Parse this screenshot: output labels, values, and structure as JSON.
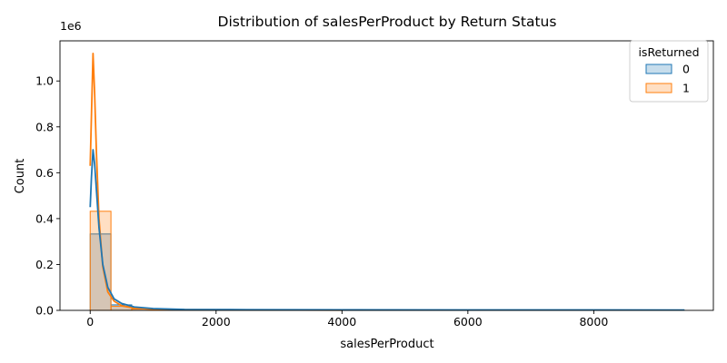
{
  "chart_data": {
    "type": "histogram",
    "title": "Distribution of salesPerProduct by Return Status",
    "xlabel": "salesPerProduct",
    "ylabel": "Count",
    "y_offset_label": "1e6",
    "xlim": [
      -480,
      9900
    ],
    "ylim": [
      0,
      1.175
    ],
    "x_ticks": [
      0,
      2000,
      4000,
      6000,
      8000
    ],
    "x_tick_labels": [
      "0",
      "2000",
      "4000",
      "6000",
      "8000"
    ],
    "y_ticks": [
      0,
      0.2,
      0.4,
      0.6,
      0.8,
      1.0
    ],
    "y_tick_labels": [
      "0.0",
      "0.2",
      "0.4",
      "0.6",
      "0.8",
      "1.0"
    ],
    "grid": false,
    "legend": {
      "title": "isReturned",
      "placement": "top-right"
    },
    "series": [
      {
        "name": "0",
        "color": "#1f77b4",
        "bins": [
          {
            "x0": 0,
            "x1": 330,
            "y": 0.333
          },
          {
            "x0": 330,
            "x1": 660,
            "y": 0.024
          },
          {
            "x0": 660,
            "x1": 990,
            "y": 0.007
          },
          {
            "x0": 990,
            "x1": 1320,
            "y": 0.004
          },
          {
            "x0": 1320,
            "x1": 1650,
            "y": 0.003
          },
          {
            "x0": 1650,
            "x1": 1980,
            "y": 0.002
          },
          {
            "x0": 1980,
            "x1": 2310,
            "y": 0.002
          },
          {
            "x0": 2310,
            "x1": 2640,
            "y": 0.001
          },
          {
            "x0": 2640,
            "x1": 3500,
            "y": 0.001
          },
          {
            "x0": 3500,
            "x1": 9440,
            "y": 0.0005
          }
        ],
        "kde": [
          [
            0,
            0.45
          ],
          [
            20,
            0.58
          ],
          [
            45,
            0.7
          ],
          [
            70,
            0.64
          ],
          [
            100,
            0.52
          ],
          [
            140,
            0.36
          ],
          [
            200,
            0.2
          ],
          [
            280,
            0.1
          ],
          [
            380,
            0.05
          ],
          [
            500,
            0.03
          ],
          [
            700,
            0.015
          ],
          [
            1000,
            0.008
          ],
          [
            1500,
            0.004
          ],
          [
            2500,
            0.003
          ],
          [
            4000,
            0.0025
          ],
          [
            6000,
            0.002
          ],
          [
            8000,
            0.0018
          ],
          [
            9440,
            0.0015
          ]
        ]
      },
      {
        "name": "1",
        "color": "#ff7f0e",
        "bins": [
          {
            "x0": 0,
            "x1": 330,
            "y": 0.432
          },
          {
            "x0": 330,
            "x1": 660,
            "y": 0.018
          },
          {
            "x0": 660,
            "x1": 990,
            "y": 0.006
          },
          {
            "x0": 990,
            "x1": 1320,
            "y": 0.003
          },
          {
            "x0": 1320,
            "x1": 1650,
            "y": 0.002
          },
          {
            "x0": 1650,
            "x1": 1980,
            "y": 0.001
          },
          {
            "x0": 1980,
            "x1": 2640,
            "y": 0.001
          },
          {
            "x0": 2640,
            "x1": 4000,
            "y": 0.0005
          }
        ],
        "kde": [
          [
            0,
            0.63
          ],
          [
            20,
            0.85
          ],
          [
            45,
            1.12
          ],
          [
            70,
            0.95
          ],
          [
            100,
            0.68
          ],
          [
            140,
            0.4
          ],
          [
            200,
            0.19
          ],
          [
            280,
            0.08
          ],
          [
            380,
            0.04
          ],
          [
            500,
            0.02
          ],
          [
            700,
            0.01
          ],
          [
            1000,
            0.005
          ],
          [
            1500,
            0.003
          ],
          [
            2500,
            0.002
          ],
          [
            4000,
            0.001
          ]
        ]
      }
    ]
  }
}
